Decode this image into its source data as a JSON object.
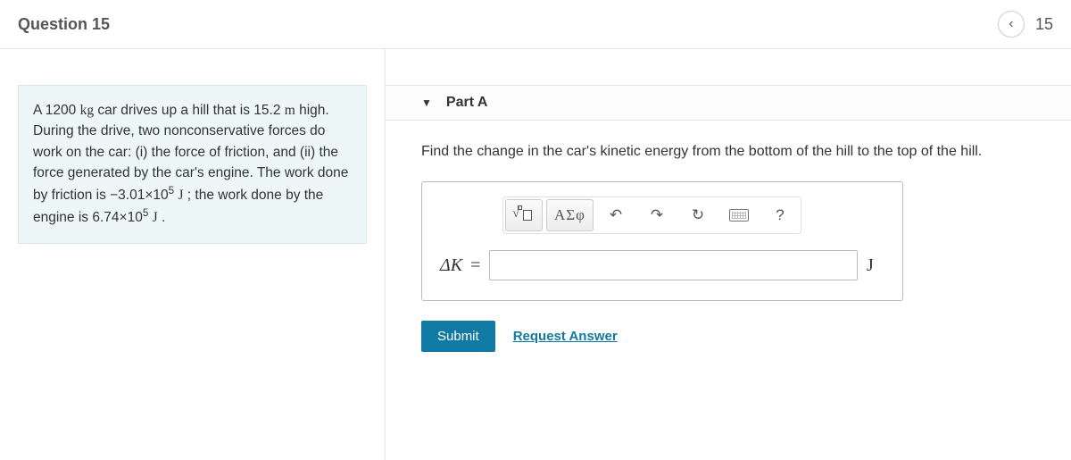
{
  "header": {
    "title": "Question 15",
    "nav_prev_glyph": "‹",
    "page_indicator": "15"
  },
  "problem": {
    "html": "A 1200 <span class='unit'>kg</span> car drives up a hill that is 15.2 <span class='unit'>m</span> high. During the drive, two nonconservative forces do work on the car: (i) the force of friction, and (ii) the force generated by the car's engine. The work done by friction is −3.01×10<sup>5</sup> <span class='unit'>J</span> ; the work done by the engine is 6.74×10<sup>5</sup> <span class='unit'>J</span> ."
  },
  "part": {
    "label": "Part A",
    "caret": "▼",
    "prompt": "Find the change in the car's kinetic energy from the bottom of the hill to the top of the hill.",
    "toolbar": {
      "templates_title": "Templates",
      "greek_label": "ΑΣφ",
      "undo_glyph": "↶",
      "redo_glyph": "↷",
      "reset_glyph": "↻",
      "keyboard_title": "Keyboard",
      "help_glyph": "?"
    },
    "input": {
      "variable_html": "Δ<i>K</i> <span class='eq'>=</span>",
      "value": "",
      "unit": "J"
    },
    "submit_label": "Submit",
    "request_label": "Request Answer"
  },
  "colors": {
    "accent": "#0f7aa3",
    "problem_bg": "#eef7f7",
    "border": "#e5e5e5"
  }
}
